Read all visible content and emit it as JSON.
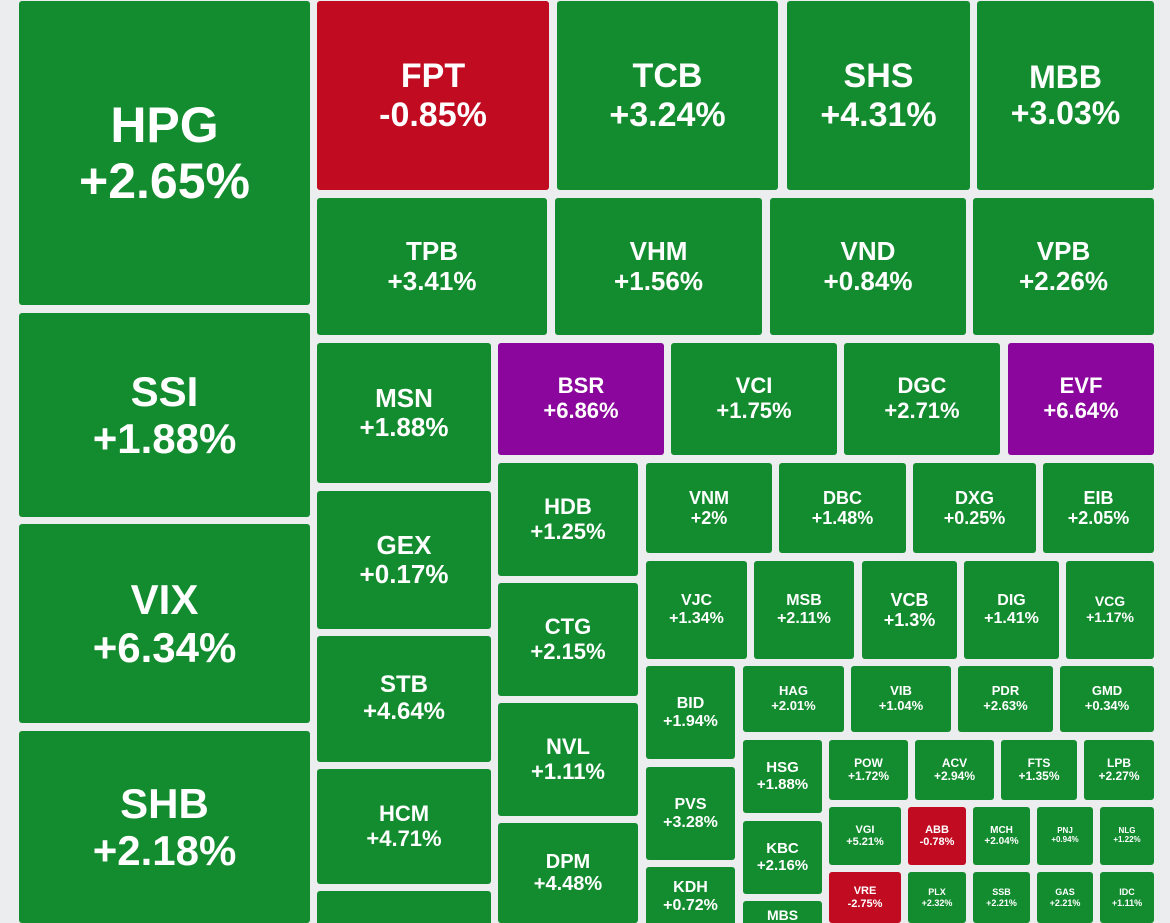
{
  "colors": {
    "up": "#138c2f",
    "down": "#c10b20",
    "ceiling": "#8a069c",
    "background": "#ecedee",
    "text": "#ffffff"
  },
  "tiles": [
    {
      "symbol": "HPG",
      "change": "+2.65%",
      "status": "up"
    },
    {
      "symbol": "FPT",
      "change": "-0.85%",
      "status": "down"
    },
    {
      "symbol": "TCB",
      "change": "+3.24%",
      "status": "up"
    },
    {
      "symbol": "SHS",
      "change": "+4.31%",
      "status": "up"
    },
    {
      "symbol": "MBB",
      "change": "+3.03%",
      "status": "up"
    },
    {
      "symbol": "TPB",
      "change": "+3.41%",
      "status": "up"
    },
    {
      "symbol": "VHM",
      "change": "+1.56%",
      "status": "up"
    },
    {
      "symbol": "VND",
      "change": "+0.84%",
      "status": "up"
    },
    {
      "symbol": "VPB",
      "change": "+2.26%",
      "status": "up"
    },
    {
      "symbol": "SSI",
      "change": "+1.88%",
      "status": "up"
    },
    {
      "symbol": "VIX",
      "change": "+6.34%",
      "status": "ceiling_not",
      "status_alias": "up"
    },
    {
      "symbol": "SHB",
      "change": "+2.18%",
      "status": "up"
    },
    {
      "symbol": "MSN",
      "change": "+1.88%",
      "status": "up"
    },
    {
      "symbol": "GEX",
      "change": "+0.17%",
      "status": "up"
    },
    {
      "symbol": "STB",
      "change": "+4.64%",
      "status": "up"
    },
    {
      "symbol": "HCM",
      "change": "+4.71%",
      "status": "up"
    },
    {
      "symbol": "",
      "change": "",
      "status": "up"
    },
    {
      "symbol": "BSR",
      "change": "+6.86%",
      "status": "ceiling"
    },
    {
      "symbol": "VCI",
      "change": "+1.75%",
      "status": "up"
    },
    {
      "symbol": "DGC",
      "change": "+2.71%",
      "status": "up"
    },
    {
      "symbol": "EVF",
      "change": "+6.64%",
      "status": "ceiling"
    },
    {
      "symbol": "HDB",
      "change": "+1.25%",
      "status": "up"
    },
    {
      "symbol": "CTG",
      "change": "+2.15%",
      "status": "up"
    },
    {
      "symbol": "NVL",
      "change": "+1.11%",
      "status": "up"
    },
    {
      "symbol": "DPM",
      "change": "+4.48%",
      "status": "up"
    },
    {
      "symbol": "VNM",
      "change": "+2%",
      "status": "up"
    },
    {
      "symbol": "DBC",
      "change": "+1.48%",
      "status": "up"
    },
    {
      "symbol": "DXG",
      "change": "+0.25%",
      "status": "up"
    },
    {
      "symbol": "EIB",
      "change": "+2.05%",
      "status": "up"
    },
    {
      "symbol": "VJC",
      "change": "+1.34%",
      "status": "up"
    },
    {
      "symbol": "MSB",
      "change": "+2.11%",
      "status": "up"
    },
    {
      "symbol": "VCB",
      "change": "+1.3%",
      "status": "up"
    },
    {
      "symbol": "DIG",
      "change": "+1.41%",
      "status": "up"
    },
    {
      "symbol": "VCG",
      "change": "+1.17%",
      "status": "up"
    },
    {
      "symbol": "BID",
      "change": "+1.94%",
      "status": "up"
    },
    {
      "symbol": "HAG",
      "change": "+2.01%",
      "status": "up"
    },
    {
      "symbol": "VIB",
      "change": "+1.04%",
      "status": "up"
    },
    {
      "symbol": "PDR",
      "change": "+2.63%",
      "status": "up"
    },
    {
      "symbol": "GMD",
      "change": "+0.34%",
      "status": "up"
    },
    {
      "symbol": "PVS",
      "change": "+3.28%",
      "status": "up"
    },
    {
      "symbol": "HSG",
      "change": "+1.88%",
      "status": "up"
    },
    {
      "symbol": "POW",
      "change": "+1.72%",
      "status": "up"
    },
    {
      "symbol": "ACV",
      "change": "+2.94%",
      "status": "up"
    },
    {
      "symbol": "FTS",
      "change": "+1.35%",
      "status": "up"
    },
    {
      "symbol": "LPB",
      "change": "+2.27%",
      "status": "up"
    },
    {
      "symbol": "KDH",
      "change": "+0.72%",
      "status": "up"
    },
    {
      "symbol": "KBC",
      "change": "+2.16%",
      "status": "up"
    },
    {
      "symbol": "VGI",
      "change": "+5.21%",
      "status": "up"
    },
    {
      "symbol": "ABB",
      "change": "-0.78%",
      "status": "down"
    },
    {
      "symbol": "MCH",
      "change": "+2.04%",
      "status": "up"
    },
    {
      "symbol": "PNJ",
      "change": "+0.94%",
      "status": "up"
    },
    {
      "symbol": "NLG",
      "change": "+1.22%",
      "status": "up"
    },
    {
      "symbol": "MBS",
      "change": "",
      "status": "up"
    },
    {
      "symbol": "VRE",
      "change": "-2.75%",
      "status": "down"
    },
    {
      "symbol": "PLX",
      "change": "+2.32%",
      "status": "up"
    },
    {
      "symbol": "SSB",
      "change": "+2.21%",
      "status": "up"
    },
    {
      "symbol": "GAS",
      "change": "+2.21%",
      "status": "up"
    },
    {
      "symbol": "IDC",
      "change": "+1.11%",
      "status": "up"
    }
  ]
}
